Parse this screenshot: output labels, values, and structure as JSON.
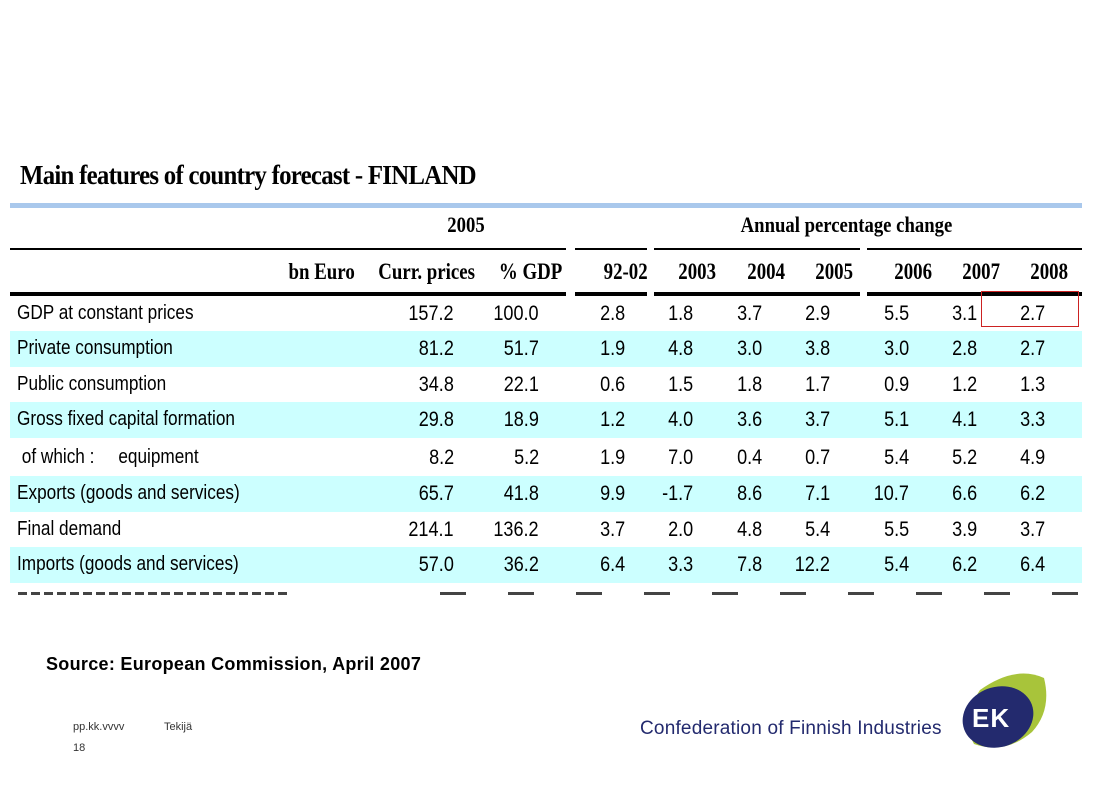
{
  "title": "Main features of country forecast - FINLAND",
  "header": {
    "group_2005": "2005",
    "group_change": "Annual percentage change",
    "columns": [
      "bn Euro",
      "Curr. prices",
      "% GDP",
      "92-02",
      "2003",
      "2004",
      "2005",
      "2006",
      "2007",
      "2008"
    ]
  },
  "rows": [
    {
      "label": "GDP at constant prices",
      "values": [
        "157.2",
        "100.0",
        "2.8",
        "1.8",
        "3.7",
        "2.9",
        "5.5",
        "3.1",
        "2.7"
      ]
    },
    {
      "label": "Private consumption",
      "values": [
        "81.2",
        "51.7",
        "1.9",
        "4.8",
        "3.0",
        "3.8",
        "3.0",
        "2.8",
        "2.7"
      ]
    },
    {
      "label": "Public consumption",
      "values": [
        "34.8",
        "22.1",
        "0.6",
        "1.5",
        "1.8",
        "1.7",
        "0.9",
        "1.2",
        "1.3"
      ]
    },
    {
      "label": "Gross fixed capital formation",
      "values": [
        "29.8",
        "18.9",
        "1.2",
        "4.0",
        "3.6",
        "3.7",
        "5.1",
        "4.1",
        "3.3"
      ]
    },
    {
      "label": " of which :     equipment",
      "values": [
        "8.2",
        "5.2",
        "1.9",
        "7.0",
        "0.4",
        "0.7",
        "5.4",
        "5.2",
        "4.9"
      ]
    },
    {
      "label": "Exports (goods and services)",
      "values": [
        "65.7",
        "41.8",
        "9.9",
        "-1.7",
        "8.6",
        "7.1",
        "10.7",
        "6.6",
        "6.2"
      ]
    },
    {
      "label": "Final demand",
      "values": [
        "214.1",
        "136.2",
        "3.7",
        "2.0",
        "4.8",
        "5.4",
        "5.5",
        "3.9",
        "3.7"
      ]
    },
    {
      "label": "Imports (goods and services)",
      "values": [
        "57.0",
        "36.2",
        "6.4",
        "3.3",
        "7.8",
        "12.2",
        "5.4",
        "6.2",
        "6.4"
      ]
    }
  ],
  "source": "Source: European Commission, April 2007",
  "footer": {
    "date": "pp.kk.vvvv",
    "author": "Tekijä",
    "page": "18"
  },
  "brand": {
    "name": "Confederation of Finnish Industries",
    "logo_text": "EK"
  },
  "colors": {
    "row_alt": "#ccffff",
    "top_rule": "#a9c8ec",
    "brand_blue": "#232a6e",
    "brand_green": "#a8c43a",
    "highlight": "#cc2222"
  }
}
